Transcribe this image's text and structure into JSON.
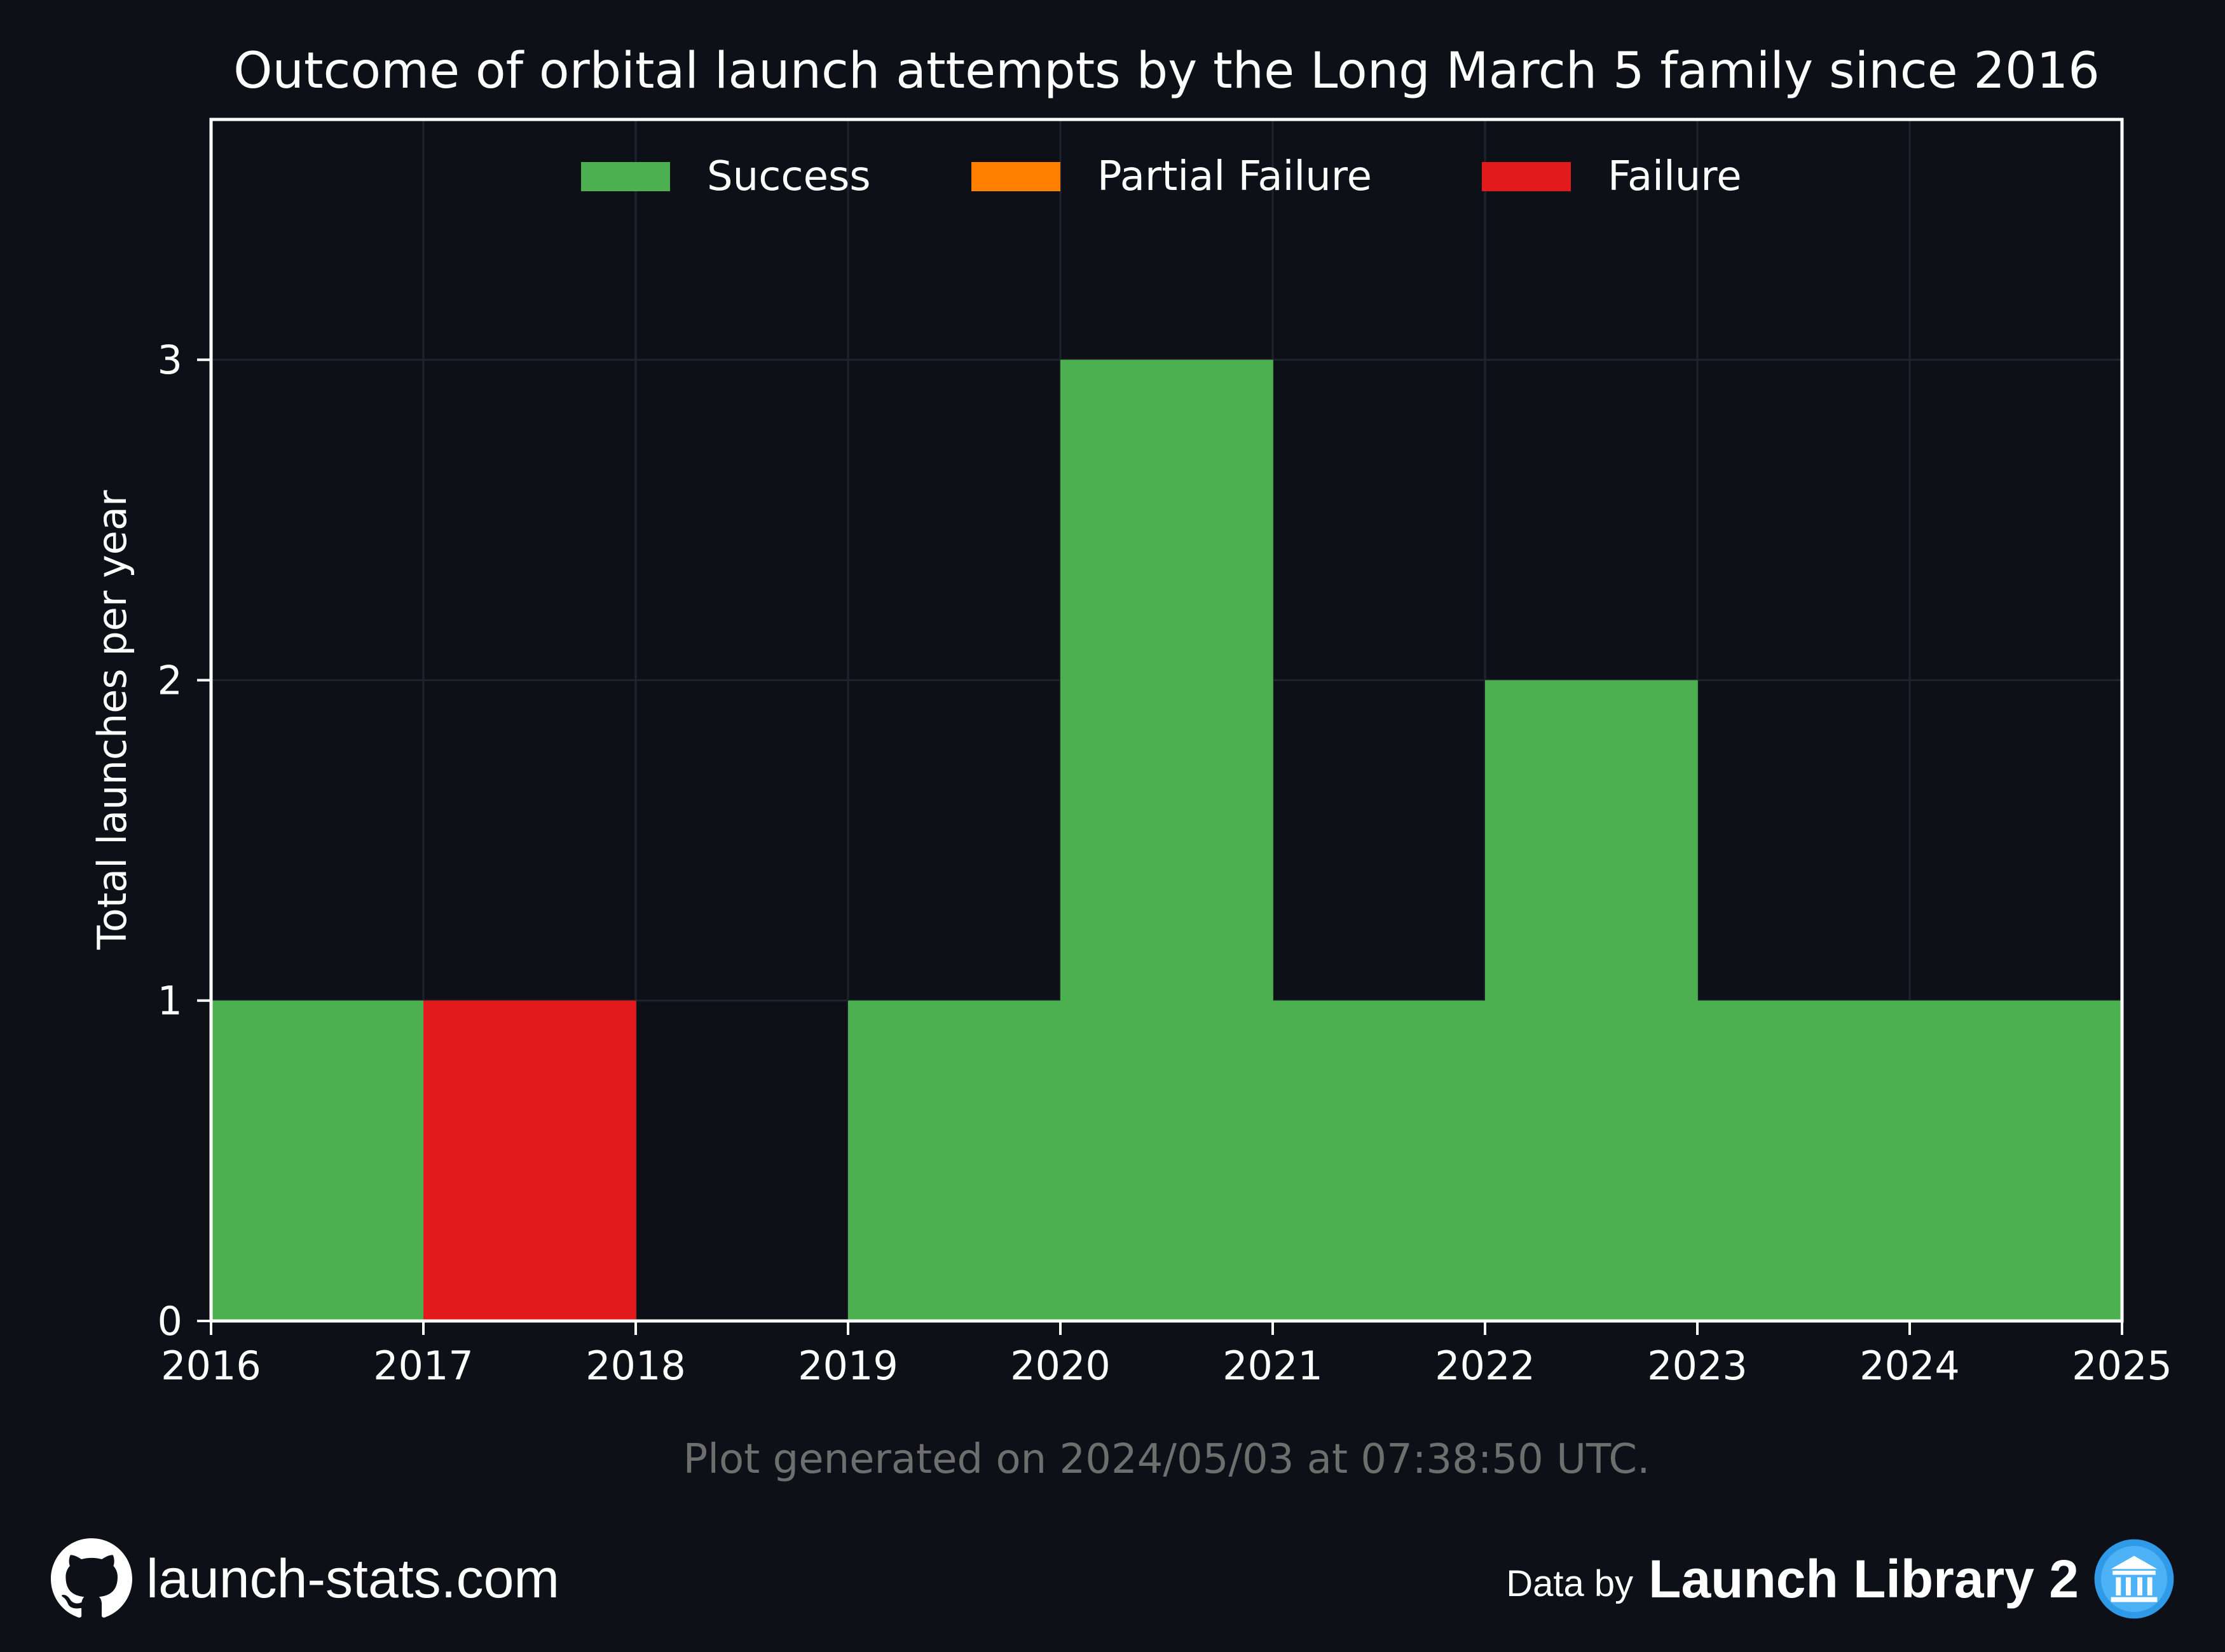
{
  "chart_data": {
    "type": "bar",
    "title": "Outcome of orbital launch attempts by the Long March 5 family since 2016",
    "xlabel": "",
    "ylabel": "Total launches per year",
    "x_edges": [
      2016,
      2017,
      2018,
      2019,
      2020,
      2021,
      2022,
      2023,
      2024,
      2025
    ],
    "xticks": [
      "2016",
      "2017",
      "2018",
      "2019",
      "2020",
      "2021",
      "2022",
      "2023",
      "2024",
      "2025"
    ],
    "yticks": [
      "0",
      "1",
      "2",
      "3"
    ],
    "xlim": [
      2016,
      2025
    ],
    "ylim": [
      0,
      3.75
    ],
    "grid": true,
    "stacked": true,
    "legend_position": "top-center",
    "series": [
      {
        "name": "Success",
        "color": "#4caf50",
        "values": [
          1,
          0,
          0,
          1,
          3,
          1,
          2,
          1,
          1
        ]
      },
      {
        "name": "Partial Failure",
        "color": "#ff8000",
        "values": [
          0,
          0,
          0,
          0,
          0,
          0,
          0,
          0,
          0
        ]
      },
      {
        "name": "Failure",
        "color": "#e31a1c",
        "values": [
          0,
          1,
          0,
          0,
          0,
          0,
          0,
          0,
          0
        ]
      }
    ],
    "annotation": "Plot generated on 2024/05/03 at 07:38:50 UTC."
  },
  "footer": {
    "site": "launch-stats.com",
    "data_by": "Data by",
    "library": "Launch Library 2",
    "site_icon": "github-icon",
    "library_icon": "launch-library-logo-icon"
  },
  "colors": {
    "background": "#0d1017",
    "text": "#ffffff",
    "muted_text": "#6e6e6e",
    "grid": "#1f242c"
  }
}
